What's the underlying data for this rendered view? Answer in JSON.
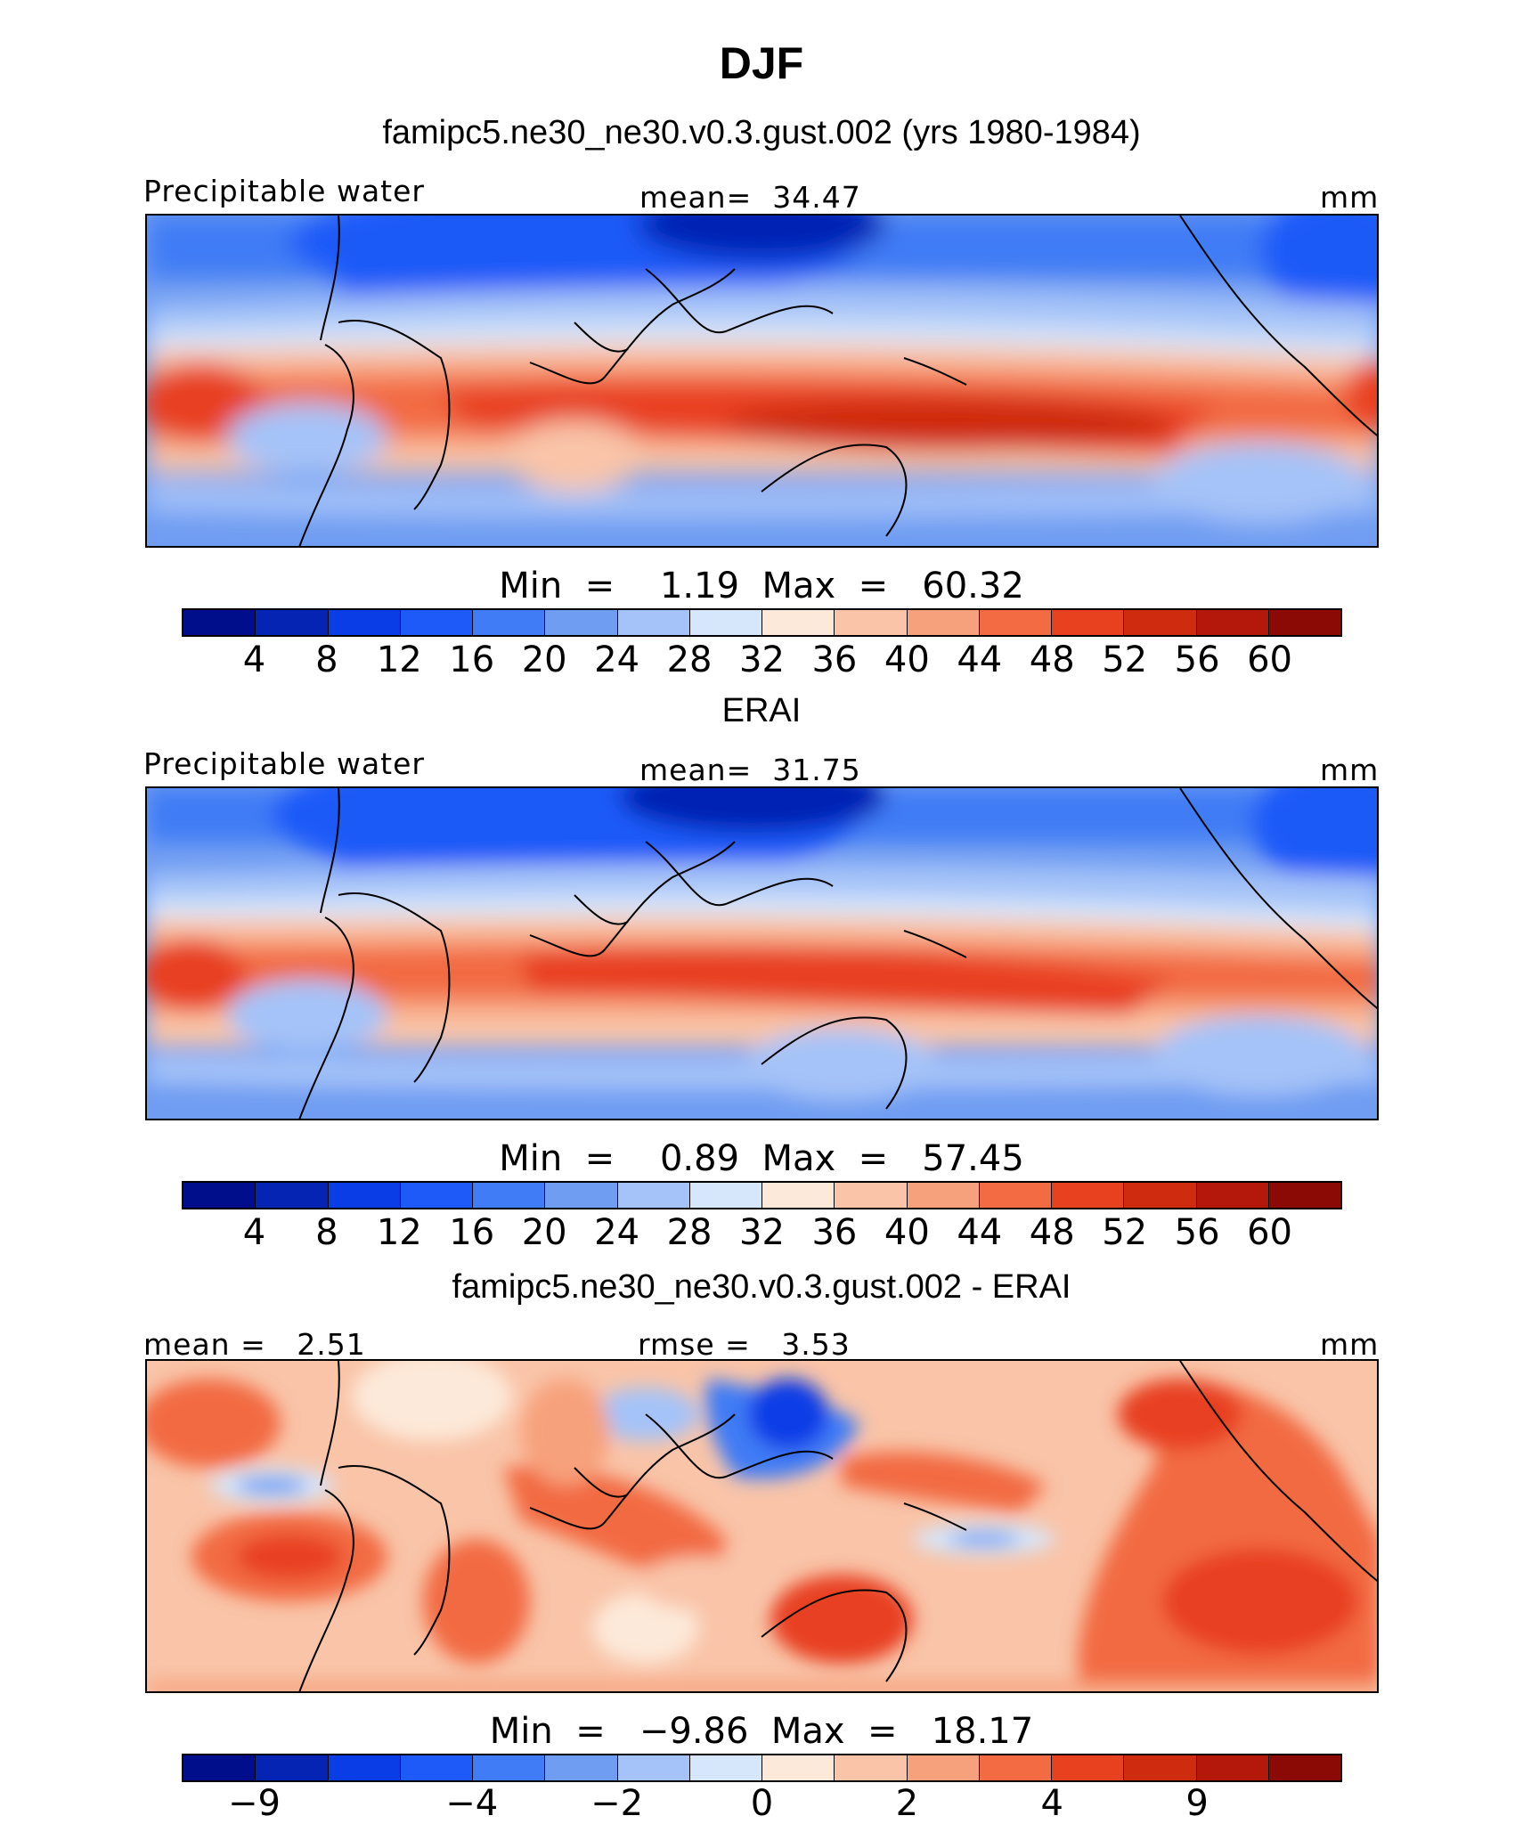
{
  "title": "DJF",
  "panels": [
    {
      "subtitle": "famipc5.ne30_ne30.v0.3.gust.002 (yrs 1980-1984)",
      "left_label": "Precipitable water",
      "center_label": "mean=",
      "center_value": "34.47",
      "units": "mm",
      "min_label": "Min",
      "min_value": "1.19",
      "max_label": "Max",
      "max_value": "60.32",
      "ticks": [
        "4",
        "8",
        "12",
        "16",
        "20",
        "24",
        "28",
        "32",
        "36",
        "40",
        "44",
        "48",
        "52",
        "56",
        "60"
      ]
    },
    {
      "subtitle": "ERAI",
      "left_label": "Precipitable water",
      "center_label": "mean=",
      "center_value": "31.75",
      "units": "mm",
      "min_label": "Min",
      "min_value": "0.89",
      "max_label": "Max",
      "max_value": "57.45",
      "ticks": [
        "4",
        "8",
        "12",
        "16",
        "20",
        "24",
        "28",
        "32",
        "36",
        "40",
        "44",
        "48",
        "52",
        "56",
        "60"
      ]
    },
    {
      "subtitle": "famipc5.ne30_ne30.v0.3.gust.002 - ERAI",
      "left_label": "mean =",
      "left_value": "2.51",
      "center_label": "rmse =",
      "center_value": "3.53",
      "units": "mm",
      "min_label": "Min",
      "min_value": "−9.86",
      "max_label": "Max",
      "max_value": "18.17",
      "ticks": [
        "−9",
        "−4",
        "−2",
        "0",
        "2",
        "4",
        "9"
      ]
    }
  ],
  "colorbar_colors": [
    "#000e8c",
    "#0524b4",
    "#0a3de6",
    "#1e5af8",
    "#3f7cf5",
    "#6f9df2",
    "#a5c3f8",
    "#d6e6fb",
    "#fde9d9",
    "#f9c4a8",
    "#f7a17c",
    "#f26b43",
    "#e84120",
    "#cf2b0e",
    "#b3180a",
    "#8c0a06"
  ],
  "chart_data": {
    "type": "heatmap",
    "title": "DJF",
    "variable": "Precipitable water",
    "units": "mm",
    "maps": [
      {
        "name": "famipc5.ne30_ne30.v0.3.gust.002 (yrs 1980-1984)",
        "mean": 34.47,
        "min": 1.19,
        "max": 60.32,
        "contour_levels": [
          4,
          8,
          12,
          16,
          20,
          24,
          28,
          32,
          36,
          40,
          44,
          48,
          52,
          56,
          60
        ]
      },
      {
        "name": "ERAI",
        "mean": 31.75,
        "min": 0.89,
        "max": 57.45,
        "contour_levels": [
          4,
          8,
          12,
          16,
          20,
          24,
          28,
          32,
          36,
          40,
          44,
          48,
          52,
          56,
          60
        ]
      },
      {
        "name": "famipc5.ne30_ne30.v0.3.gust.002 - ERAI",
        "mean": 2.51,
        "rmse": 3.53,
        "min": -9.86,
        "max": 18.17,
        "contour_levels": [
          -9,
          -4,
          -2,
          0,
          2,
          4,
          9
        ]
      }
    ]
  }
}
